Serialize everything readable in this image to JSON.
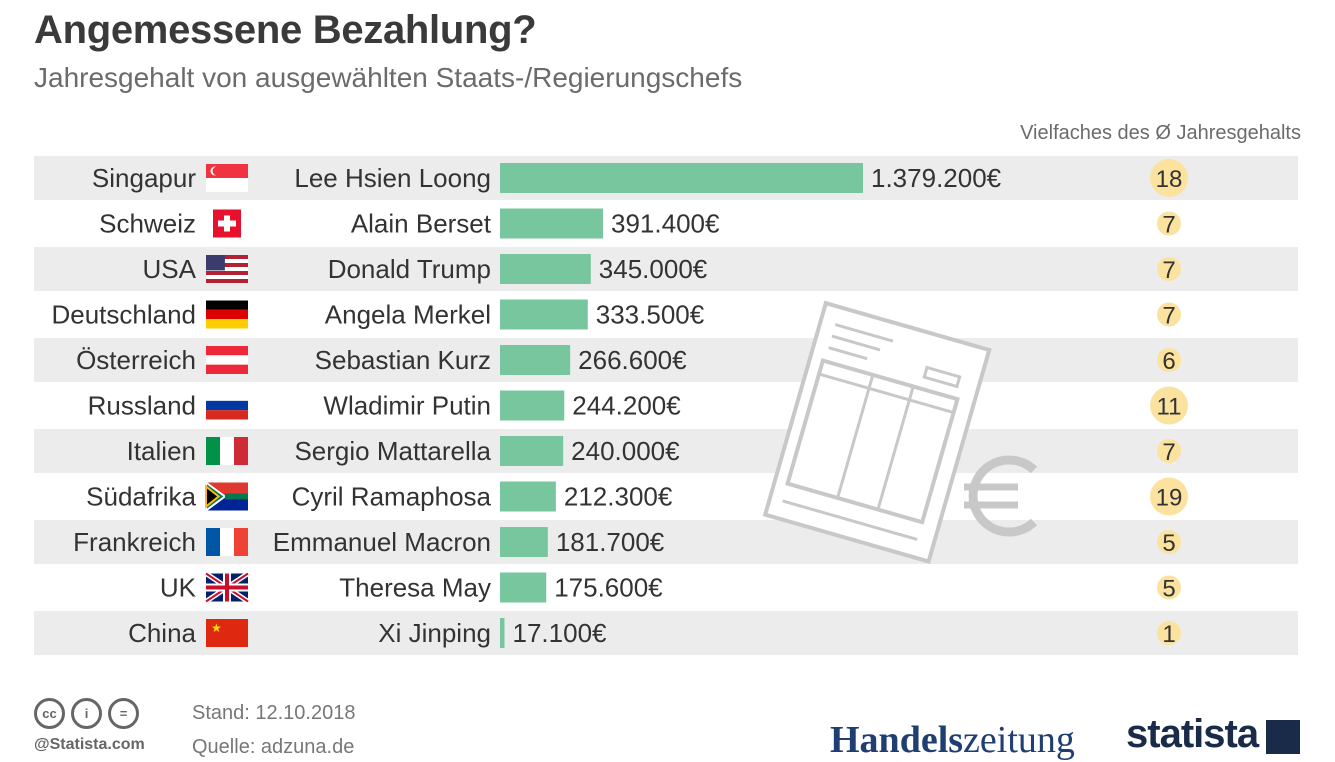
{
  "title": "Angemessene Bezahlung?",
  "subtitle": "Jahresgehalt von ausgewählten Staats-/Regierungschefs",
  "multiplier_header": "Vielfaches des Ø Jahresgehalts",
  "footer": {
    "date": "Stand: 12.10.2018",
    "source": "Quelle: adzuna.de",
    "copyright": "@Statista.com",
    "cc_icons": [
      "cc-icon",
      "person-icon",
      "equals-icon"
    ],
    "cc_labels": [
      "cc",
      "i",
      "="
    ]
  },
  "logos": {
    "handelszeitung_bold": "Handels",
    "handelszeitung_light": "zeitung",
    "statista": "statista"
  },
  "colors": {
    "bar": "#77c69d",
    "row_band": "#ececec",
    "badge": "#fbe29e",
    "text": "#333333",
    "illustration": "#c8c8c8"
  },
  "chart_data": {
    "type": "bar",
    "orientation": "horizontal",
    "title": "Angemessene Bezahlung?",
    "subtitle": "Jahresgehalt von ausgewählten Staats-/Regierungschefs",
    "categories": [
      "Singapur",
      "Schweiz",
      "USA",
      "Deutschland",
      "Österreich",
      "Russland",
      "Italien",
      "Südafrika",
      "Frankreich",
      "UK",
      "China"
    ],
    "leaders": [
      "Lee Hsien Loong",
      "Alain Berset",
      "Donald Trump",
      "Angela Merkel",
      "Sebastian Kurz",
      "Wladimir Putin",
      "Sergio Mattarella",
      "Cyril Ramaphosa",
      "Emmanuel Macron",
      "Theresa May",
      "Xi Jinping"
    ],
    "values": [
      1379200,
      391400,
      345000,
      333500,
      266600,
      244200,
      240000,
      212300,
      181700,
      175600,
      17100
    ],
    "value_labels": [
      "1.379.200€",
      "391.400€",
      "345.000€",
      "333.500€",
      "266.600€",
      "244.200€",
      "240.000€",
      "212.300€",
      "181.700€",
      "175.600€",
      "17.100€"
    ],
    "multiples": [
      18,
      7,
      7,
      7,
      6,
      11,
      7,
      19,
      5,
      5,
      1
    ],
    "flags": [
      "singapore-flag",
      "switzerland-flag",
      "usa-flag",
      "germany-flag",
      "austria-flag",
      "russia-flag",
      "italy-flag",
      "south-africa-flag",
      "france-flag",
      "uk-flag",
      "china-flag"
    ],
    "xlim": [
      0,
      1379200
    ],
    "grid": false,
    "legend": "none"
  }
}
